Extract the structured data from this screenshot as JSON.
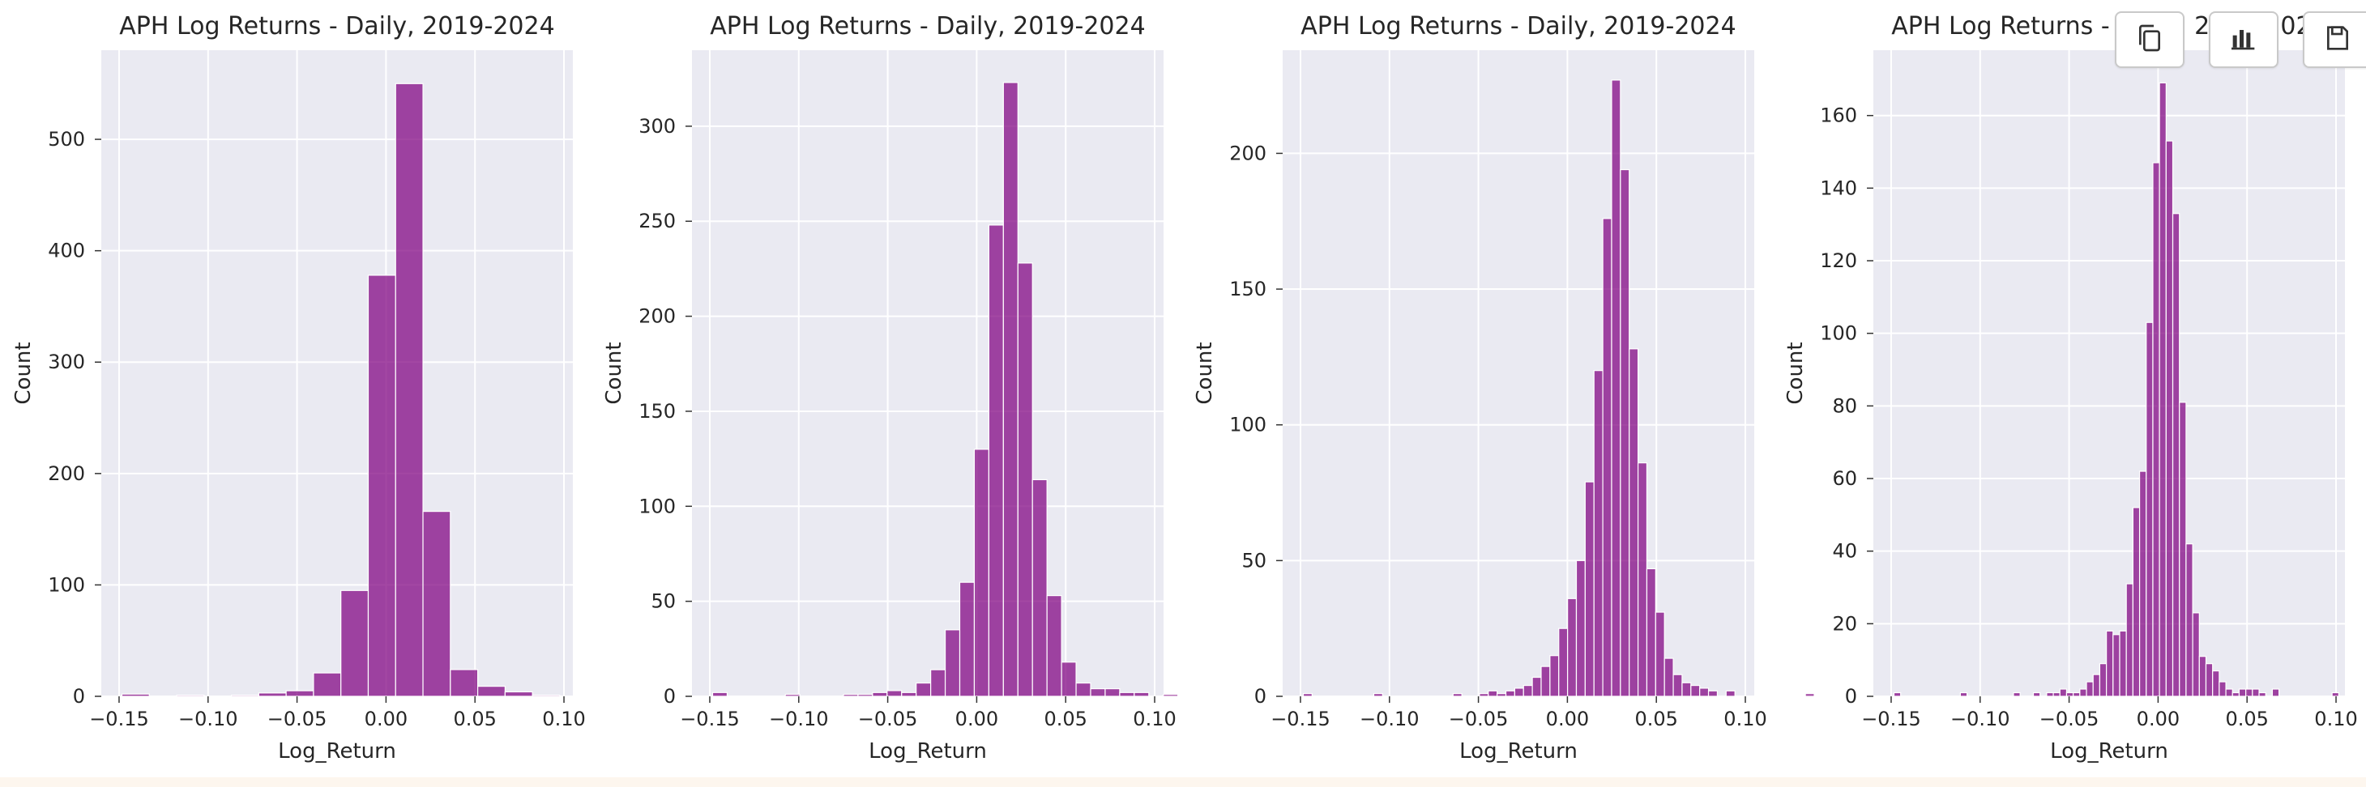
{
  "toolbar": {
    "copy_icon": "copy-icon",
    "chart_icon": "bar-chart-icon",
    "save_icon": "save-icon"
  },
  "style": {
    "bar_color": "#800080",
    "panel_background": "#eaeaf2",
    "grid_color": "#ffffff"
  },
  "chart_data": [
    {
      "type": "bar",
      "title": "APH Log Returns - Daily, 2019-2024",
      "xlabel": "Log_Return",
      "ylabel": "Count",
      "xlim": [
        -0.16,
        0.105
      ],
      "ylim": [
        0,
        580
      ],
      "xticks": [
        -0.15,
        -0.1,
        -0.05,
        0.0,
        0.05,
        0.1
      ],
      "xtick_labels": [
        "−0.15",
        "−0.10",
        "−0.05",
        "0.00",
        "0.05",
        "0.10"
      ],
      "yticks": [
        0,
        100,
        200,
        300,
        400,
        500
      ],
      "grid": true,
      "bin_start": -0.1484,
      "bin_width": 0.01538,
      "values": [
        2,
        0,
        1,
        0,
        1,
        3,
        5,
        21,
        95,
        378,
        550,
        166,
        24,
        9,
        4,
        1,
        0
      ]
    },
    {
      "type": "bar",
      "title": "APH Log Returns - Daily, 2019-2024",
      "xlabel": "Log_Return",
      "ylabel": "Count",
      "xlim": [
        -0.16,
        0.105
      ],
      "ylim": [
        0,
        340
      ],
      "xticks": [
        -0.15,
        -0.1,
        -0.05,
        0.0,
        0.05,
        0.1
      ],
      "xtick_labels": [
        "−0.15",
        "−0.10",
        "−0.05",
        "0.00",
        "0.05",
        "0.10"
      ],
      "yticks": [
        0,
        50,
        100,
        150,
        200,
        250,
        300
      ],
      "grid": true,
      "bin_start": -0.1484,
      "bin_width": 0.00817,
      "values": [
        2,
        0,
        0,
        0,
        0,
        1,
        0,
        0,
        0,
        1,
        1,
        2,
        3,
        2,
        7,
        14,
        35,
        60,
        130,
        248,
        323,
        228,
        114,
        53,
        18,
        7,
        4,
        4,
        2,
        2,
        0,
        1
      ]
    },
    {
      "type": "bar",
      "title": "APH Log Returns - Daily, 2019-2024",
      "xlabel": "Log_Return",
      "ylabel": "Count",
      "xlim": [
        -0.16,
        0.105
      ],
      "ylim": [
        0,
        238
      ],
      "xticks": [
        -0.15,
        -0.1,
        -0.05,
        0.0,
        0.05,
        0.1
      ],
      "xtick_labels": [
        "−0.15",
        "−0.10",
        "−0.05",
        "0.00",
        "0.05",
        "0.10"
      ],
      "yticks": [
        0,
        50,
        100,
        150,
        200
      ],
      "grid": true,
      "bin_start": -0.1484,
      "bin_width": 0.00495,
      "values": [
        1,
        0,
        0,
        0,
        0,
        0,
        0,
        0,
        1,
        0,
        0,
        0,
        0,
        0,
        0,
        0,
        0,
        1,
        0,
        0,
        1,
        2,
        1,
        2,
        3,
        4,
        7,
        11,
        15,
        25,
        36,
        50,
        79,
        120,
        176,
        227,
        194,
        128,
        86,
        47,
        31,
        14,
        8,
        5,
        4,
        3,
        2,
        0,
        2,
        0,
        0,
        0,
        0,
        0,
        0,
        0,
        0,
        1
      ]
    },
    {
      "type": "bar",
      "title": "APH Log Returns - Daily, 2019-2024",
      "xlabel": "Log_Return",
      "ylabel": "Count",
      "xlim": [
        -0.16,
        0.105
      ],
      "ylim": [
        0,
        178
      ],
      "xticks": [
        -0.15,
        -0.1,
        -0.05,
        0.0,
        0.05,
        0.1
      ],
      "xtick_labels": [
        "−0.15",
        "−0.10",
        "−0.05",
        "0.00",
        "0.05",
        "0.10"
      ],
      "yticks": [
        0,
        20,
        40,
        60,
        80,
        100,
        120,
        140,
        160
      ],
      "grid": true,
      "bin_start": -0.1484,
      "bin_width": 0.00373,
      "values": [
        1,
        0,
        0,
        0,
        0,
        0,
        0,
        0,
        0,
        0,
        1,
        0,
        0,
        0,
        0,
        0,
        0,
        0,
        1,
        0,
        0,
        1,
        0,
        1,
        1,
        2,
        1,
        1,
        2,
        4,
        6,
        9,
        18,
        17,
        18,
        31,
        52,
        62,
        103,
        147,
        169,
        153,
        133,
        81,
        42,
        23,
        11,
        9,
        7,
        4,
        2,
        1,
        2,
        2,
        2,
        1,
        0,
        2,
        0,
        0,
        0,
        0,
        0,
        0,
        0,
        0,
        1
      ]
    }
  ]
}
